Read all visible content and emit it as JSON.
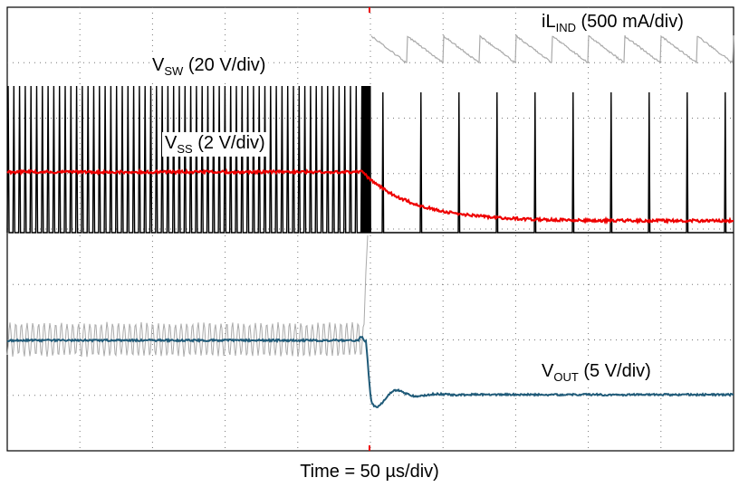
{
  "labels": {
    "inductor": {
      "main": "iL",
      "sub": "IND",
      "scale": " (500 mA/div)"
    },
    "switch": {
      "main": "V",
      "sub": "SW",
      "scale": " (20 V/div)"
    },
    "soft_start": {
      "main": "V",
      "sub": "SS",
      "scale": " (2 V/div)"
    },
    "output": {
      "main": "V",
      "sub": "OUT",
      "scale": " (5 V/div)"
    }
  },
  "time_label": "Time = 50 µs/div)"
}
